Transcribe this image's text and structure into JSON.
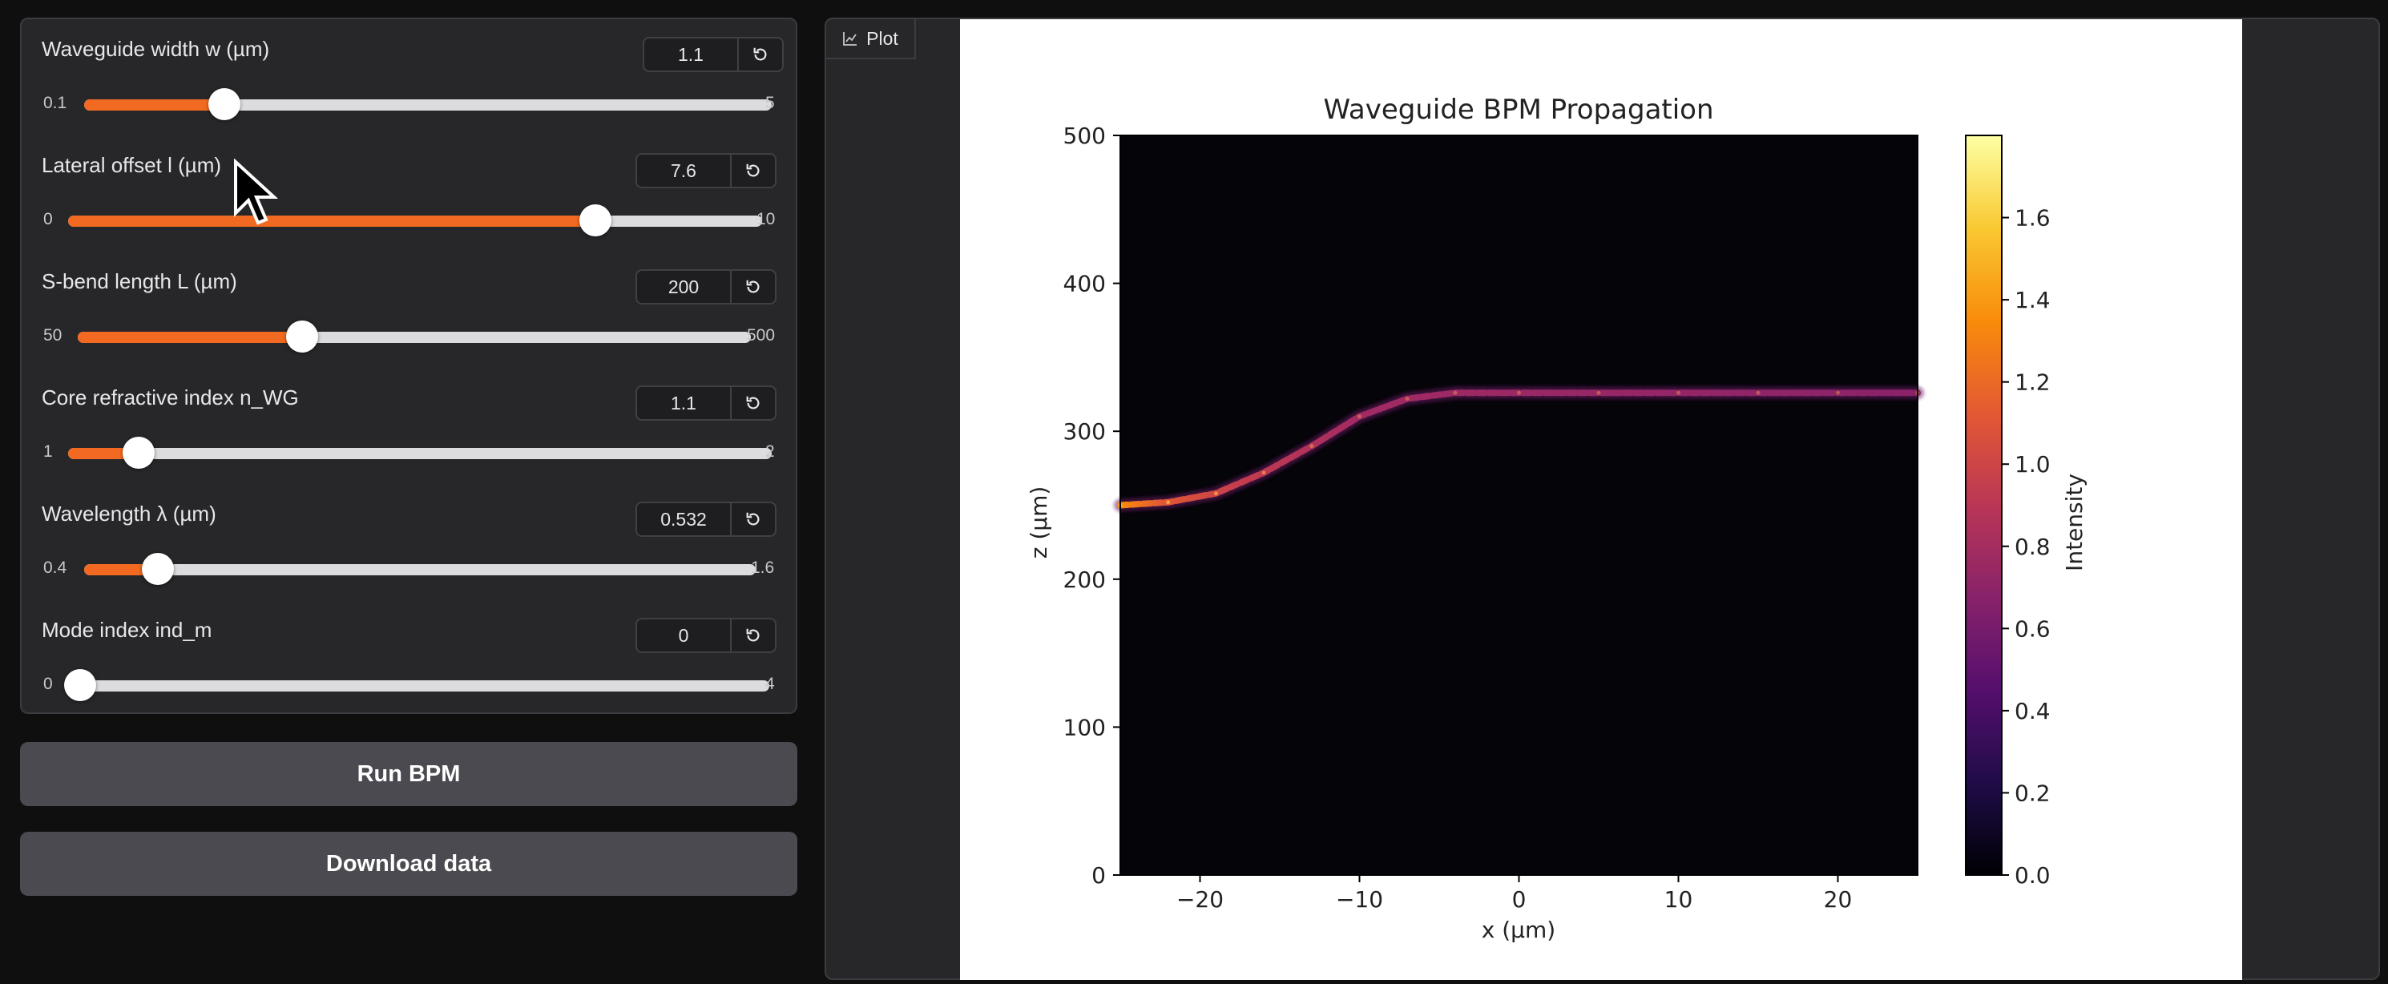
{
  "sliders": [
    {
      "label": "Waveguide width w (µm)",
      "value": "1.1",
      "min": "0.1",
      "max": "5",
      "fraction": 0.204
    },
    {
      "label": "Lateral offset l (µm)",
      "value": "7.6",
      "min": "0",
      "max": "10",
      "fraction": 0.76
    },
    {
      "label": "S-bend length L (µm)",
      "value": "200",
      "min": "50",
      "max": "500",
      "fraction": 0.333
    },
    {
      "label": "Core refractive index n_WG",
      "value": "1.1",
      "min": "1",
      "max": "2",
      "fraction": 0.1
    },
    {
      "label": "Wavelength λ (µm)",
      "value": "0.532",
      "min": "0.4",
      "max": "1.6",
      "fraction": 0.11
    },
    {
      "label": "Mode index ind_m",
      "value": "0",
      "min": "0",
      "max": "4",
      "fraction": 0.0
    }
  ],
  "buttons": {
    "run": "Run BPM",
    "download": "Download data"
  },
  "plot_tab": {
    "label": "Plot"
  },
  "colors": {
    "accent": "#f26a21",
    "panel": "#27272a",
    "background": "#0f0f10"
  },
  "chart_data": {
    "type": "heatmap",
    "title": "Waveguide BPM Propagation",
    "xlabel": "x (µm)",
    "ylabel": "z (µm)",
    "xlim": [
      -25,
      25
    ],
    "ylim": [
      0,
      500
    ],
    "xticks": [
      "−20",
      "−10",
      "0",
      "10",
      "20"
    ],
    "xtick_values": [
      -20,
      -10,
      0,
      10,
      20
    ],
    "yticks": [
      "0",
      "100",
      "200",
      "300",
      "400",
      "500"
    ],
    "ytick_values": [
      0,
      100,
      200,
      300,
      400,
      500
    ],
    "colorbar": {
      "label": "Intensity",
      "colormap": "inferno",
      "range": [
        0,
        1.8
      ],
      "ticks": [
        "0.0",
        "0.2",
        "0.4",
        "0.6",
        "0.8",
        "1.0",
        "1.2",
        "1.4",
        "1.6"
      ],
      "tick_values": [
        0.0,
        0.2,
        0.4,
        0.6,
        0.8,
        1.0,
        1.2,
        1.4,
        1.6
      ]
    },
    "beam_path": {
      "x": [
        -25,
        -22,
        -19,
        -16,
        -13,
        -10,
        -7,
        -4,
        0,
        5,
        10,
        15,
        20,
        25
      ],
      "z": [
        250,
        252,
        258,
        272,
        290,
        310,
        322,
        326,
        326,
        326,
        326,
        326,
        326,
        326
      ],
      "intensity": [
        1.5,
        1.4,
        1.2,
        1.0,
        0.85,
        0.75,
        0.7,
        0.68,
        0.68,
        0.68,
        0.68,
        0.68,
        0.68,
        0.68
      ]
    }
  }
}
